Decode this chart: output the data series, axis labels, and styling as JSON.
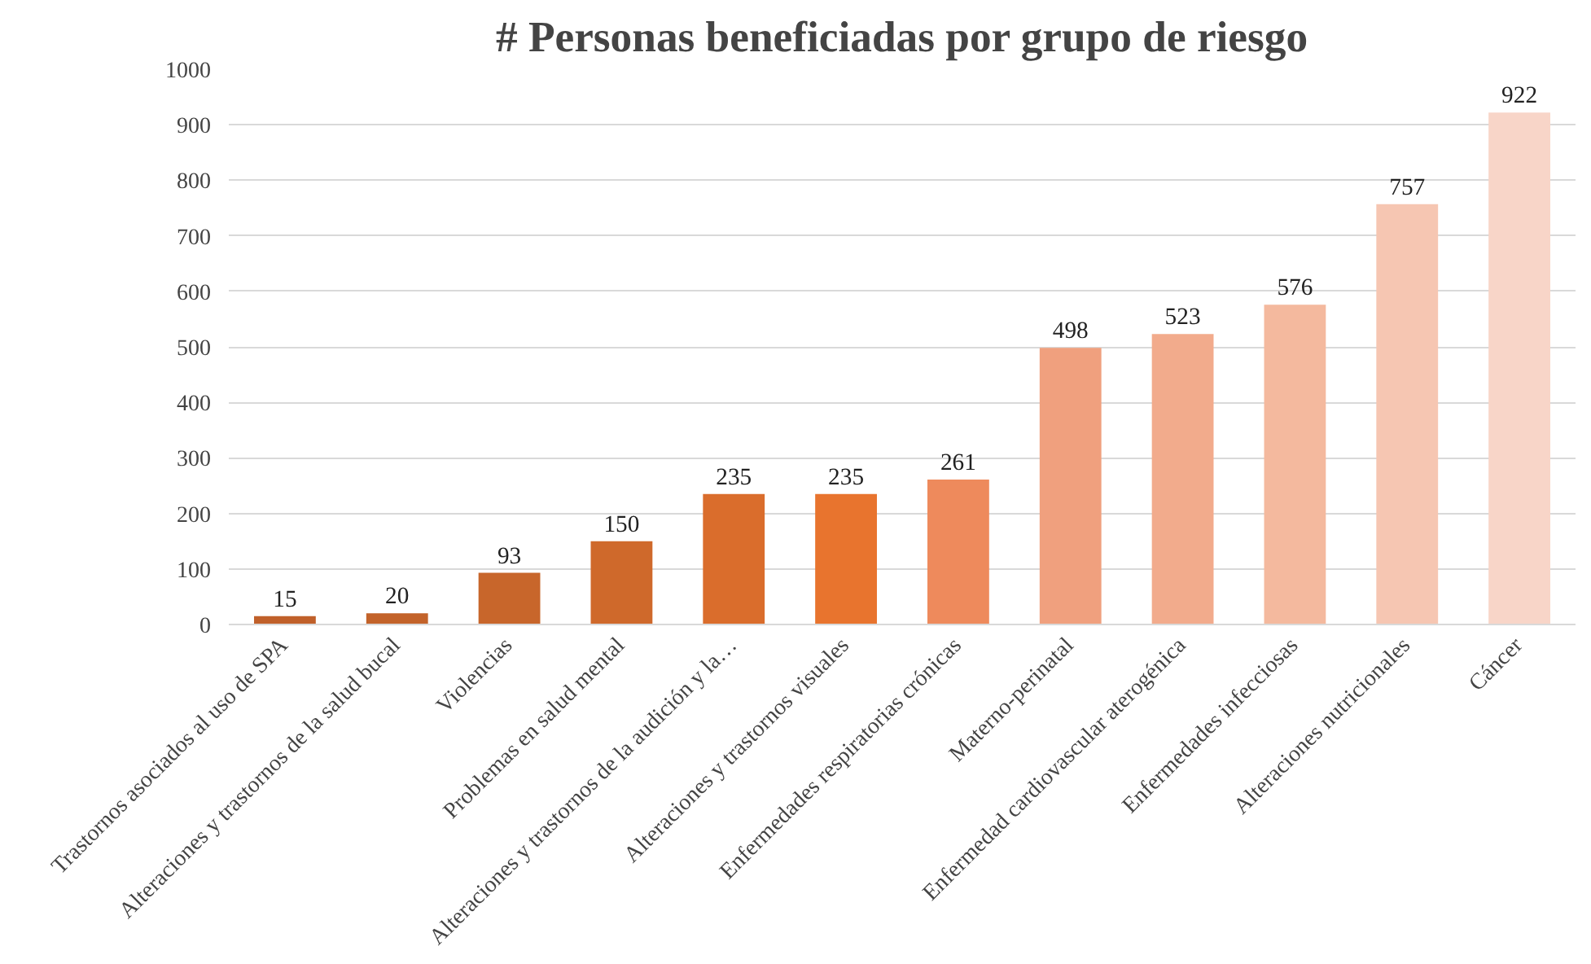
{
  "chart_data": {
    "type": "bar",
    "title": "# Personas beneficiadas por grupo de riesgo",
    "categories": [
      "Trastornos asociados al uso de SPA",
      "Alteraciones y trastornos de la salud bucal",
      "Violencias",
      "Problemas en salud mental",
      "Alteraciones y trastornos de la audición y la…",
      "Alteraciones y trastornos visuales",
      "Enfermedades respiratorias crónicas",
      "Materno-perinatal",
      "Enfermedad cardiovascular aterogénica",
      "Enfermedades infecciosas",
      "Alteraciones nutricionales",
      "Cáncer"
    ],
    "values": [
      15,
      20,
      93,
      150,
      235,
      235,
      261,
      498,
      523,
      576,
      757,
      922
    ],
    "colors": [
      "#c0602a",
      "#c3632a",
      "#c8662b",
      "#cf692b",
      "#da6d2c",
      "#e8742e",
      "#ee8a5c",
      "#f0a07e",
      "#f2ab8c",
      "#f4b99e",
      "#f6c6b2",
      "#f8d5c8"
    ],
    "ylim": [
      0,
      1000
    ],
    "yticks": [
      0,
      100,
      200,
      300,
      400,
      500,
      600,
      700,
      800,
      900,
      1000
    ],
    "grid": "y",
    "data_labels": true
  }
}
